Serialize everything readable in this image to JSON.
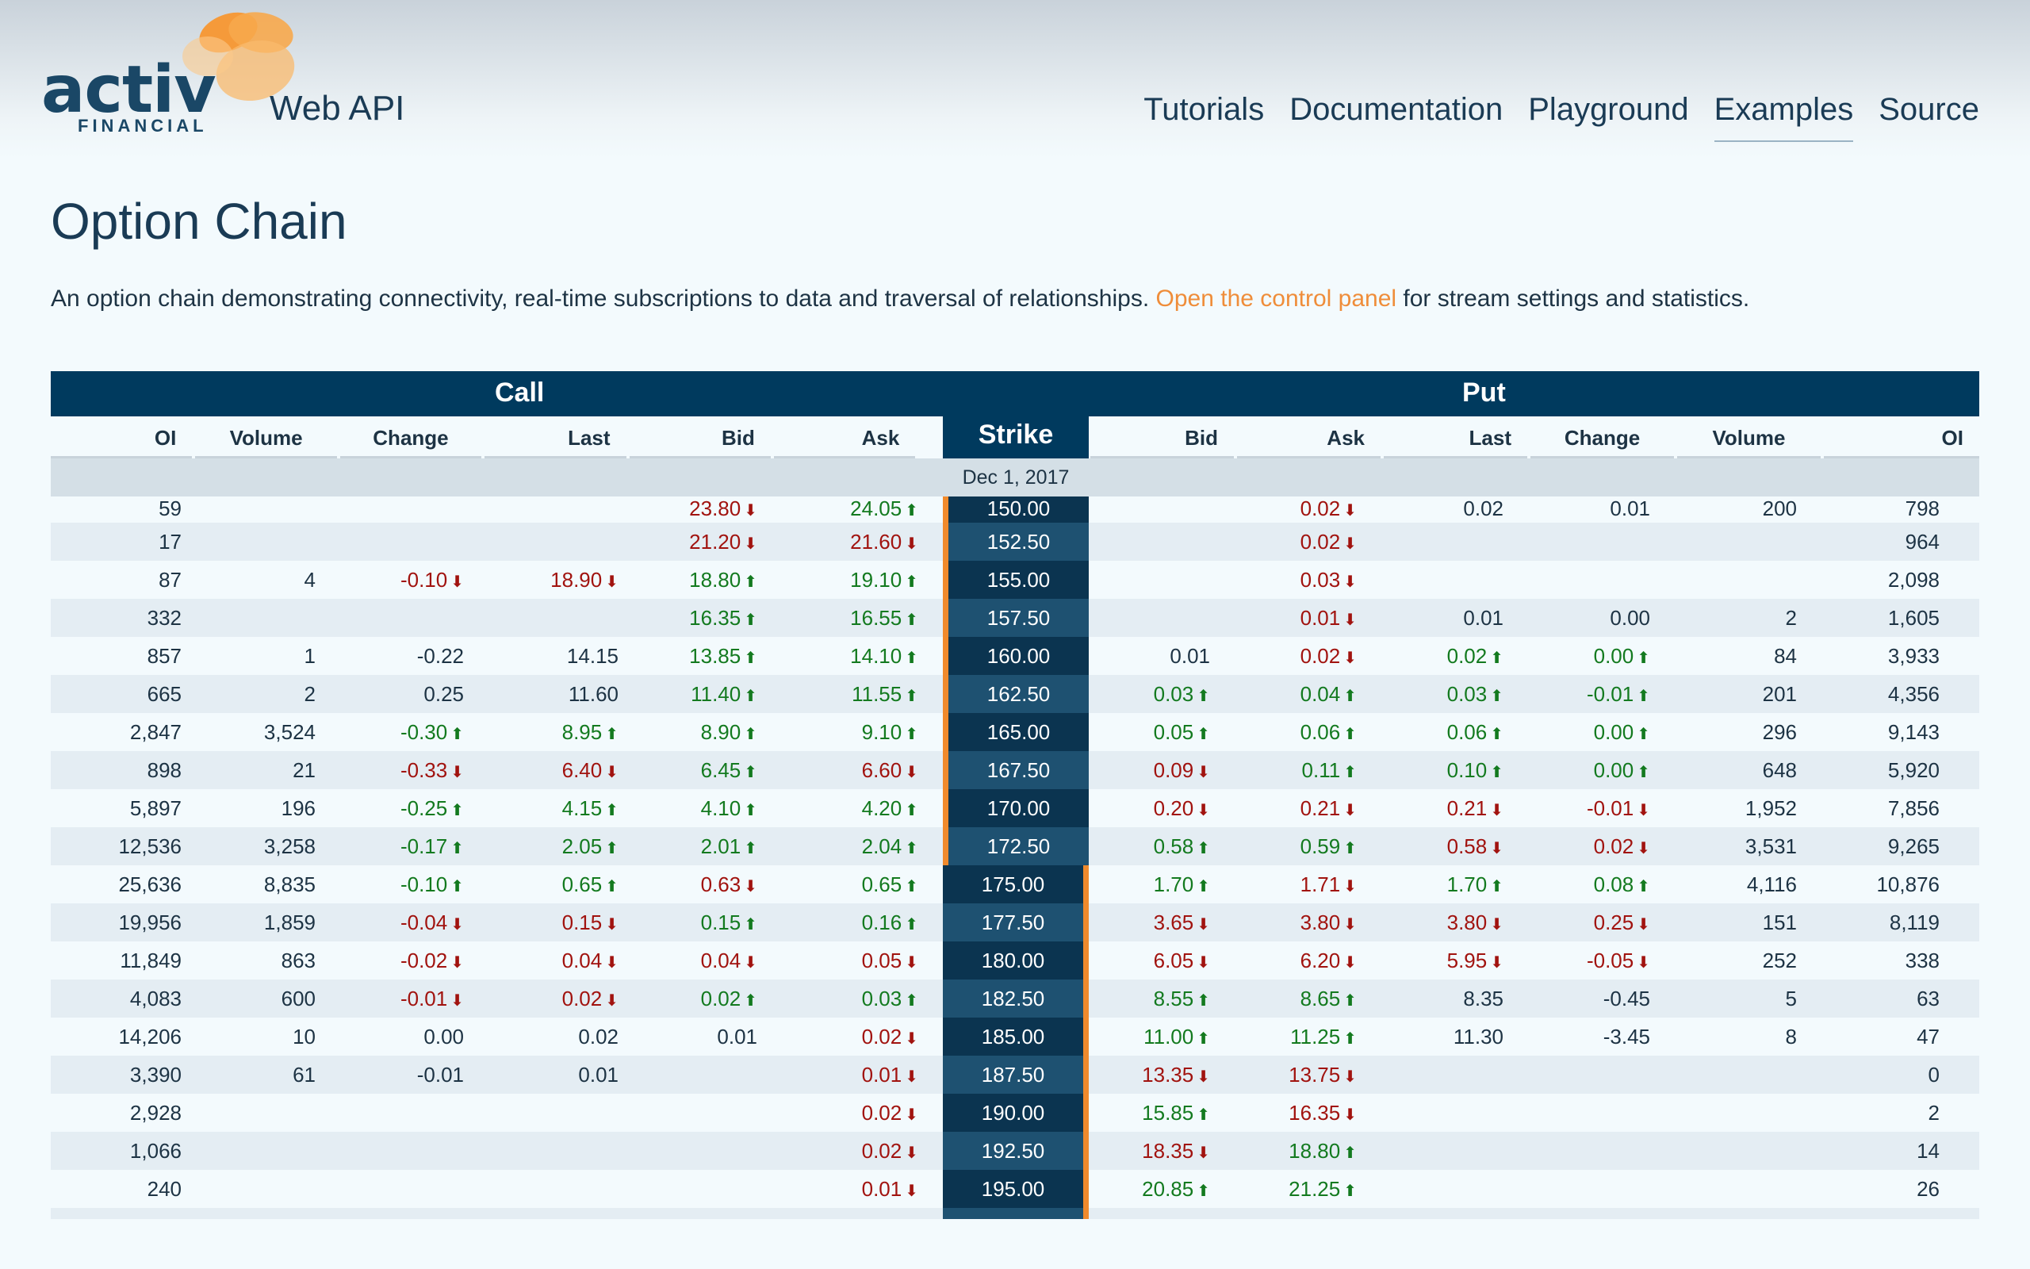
{
  "brand": {
    "logo_word": "activ",
    "logo_sub": "FINANCIAL",
    "product": "Web API"
  },
  "nav": [
    {
      "label": "Tutorials",
      "active": false
    },
    {
      "label": "Documentation",
      "active": false
    },
    {
      "label": "Playground",
      "active": false
    },
    {
      "label": "Examples",
      "active": true
    },
    {
      "label": "Source",
      "active": false
    }
  ],
  "page": {
    "title": "Option Chain",
    "intro_before": "An option chain demonstrating connectivity, real-time subscriptions to data and traversal of relationships. ",
    "intro_link": "Open the control panel",
    "intro_after": " for stream settings and statistics."
  },
  "chain": {
    "call_label": "Call",
    "put_label": "Put",
    "strike_label": "Strike",
    "call_columns": [
      "OI",
      "Volume",
      "Change",
      "Last",
      "Bid",
      "Ask"
    ],
    "put_columns": [
      "Bid",
      "Ask",
      "Last",
      "Change",
      "Volume",
      "OI"
    ],
    "expiry": "Dec 1, 2017",
    "colors": {
      "up": "#137a1f",
      "down": "#a1130f",
      "header": "#003a5e",
      "itm_marker": "#f08a2c",
      "link": "#ef8d3a"
    },
    "rows": [
      {
        "strike": "150.00",
        "itm": "call",
        "call": [
          [
            "59",
            ""
          ],
          [
            "",
            ""
          ],
          [
            "",
            ""
          ],
          [
            "",
            ""
          ],
          [
            "23.80",
            "d"
          ],
          [
            "24.05",
            "u"
          ]
        ],
        "put": [
          [
            "",
            ""
          ],
          [
            "0.02",
            "d"
          ],
          [
            "0.02",
            ""
          ],
          [
            "0.01",
            ""
          ],
          [
            "200",
            ""
          ],
          [
            "798",
            ""
          ]
        ]
      },
      {
        "strike": "152.50",
        "itm": "call",
        "call": [
          [
            "17",
            ""
          ],
          [
            "",
            ""
          ],
          [
            "",
            ""
          ],
          [
            "",
            ""
          ],
          [
            "21.20",
            "d"
          ],
          [
            "21.60",
            "d"
          ]
        ],
        "put": [
          [
            "",
            ""
          ],
          [
            "0.02",
            "d"
          ],
          [
            "",
            ""
          ],
          [
            "",
            ""
          ],
          [
            "",
            ""
          ],
          [
            "964",
            ""
          ]
        ]
      },
      {
        "strike": "155.00",
        "itm": "call",
        "call": [
          [
            "87",
            ""
          ],
          [
            "4",
            ""
          ],
          [
            "-0.10",
            "d"
          ],
          [
            "18.90",
            "d"
          ],
          [
            "18.80",
            "u"
          ],
          [
            "19.10",
            "u"
          ]
        ],
        "put": [
          [
            "",
            ""
          ],
          [
            "0.03",
            "d"
          ],
          [
            "",
            ""
          ],
          [
            "",
            ""
          ],
          [
            "",
            ""
          ],
          [
            "2,098",
            ""
          ]
        ]
      },
      {
        "strike": "157.50",
        "itm": "call",
        "call": [
          [
            "332",
            ""
          ],
          [
            "",
            ""
          ],
          [
            "",
            ""
          ],
          [
            "",
            ""
          ],
          [
            "16.35",
            "u"
          ],
          [
            "16.55",
            "u"
          ]
        ],
        "put": [
          [
            "",
            ""
          ],
          [
            "0.01",
            "d"
          ],
          [
            "0.01",
            ""
          ],
          [
            "0.00",
            ""
          ],
          [
            "2",
            ""
          ],
          [
            "1,605",
            ""
          ]
        ]
      },
      {
        "strike": "160.00",
        "itm": "call",
        "call": [
          [
            "857",
            ""
          ],
          [
            "1",
            ""
          ],
          [
            "-0.22",
            ""
          ],
          [
            "14.15",
            ""
          ],
          [
            "13.85",
            "u"
          ],
          [
            "14.10",
            "u"
          ]
        ],
        "put": [
          [
            "0.01",
            ""
          ],
          [
            "0.02",
            "d"
          ],
          [
            "0.02",
            "u"
          ],
          [
            "0.00",
            "u"
          ],
          [
            "84",
            ""
          ],
          [
            "3,933",
            ""
          ]
        ]
      },
      {
        "strike": "162.50",
        "itm": "call",
        "call": [
          [
            "665",
            ""
          ],
          [
            "2",
            ""
          ],
          [
            "0.25",
            ""
          ],
          [
            "11.60",
            ""
          ],
          [
            "11.40",
            "u"
          ],
          [
            "11.55",
            "u"
          ]
        ],
        "put": [
          [
            "0.03",
            "u"
          ],
          [
            "0.04",
            "u"
          ],
          [
            "0.03",
            "u"
          ],
          [
            "-0.01",
            "u"
          ],
          [
            "201",
            ""
          ],
          [
            "4,356",
            ""
          ]
        ]
      },
      {
        "strike": "165.00",
        "itm": "call",
        "call": [
          [
            "2,847",
            ""
          ],
          [
            "3,524",
            ""
          ],
          [
            "-0.30",
            "u"
          ],
          [
            "8.95",
            "u"
          ],
          [
            "8.90",
            "u"
          ],
          [
            "9.10",
            "u"
          ]
        ],
        "put": [
          [
            "0.05",
            "u"
          ],
          [
            "0.06",
            "u"
          ],
          [
            "0.06",
            "u"
          ],
          [
            "0.00",
            "u"
          ],
          [
            "296",
            ""
          ],
          [
            "9,143",
            ""
          ]
        ]
      },
      {
        "strike": "167.50",
        "itm": "call",
        "call": [
          [
            "898",
            ""
          ],
          [
            "21",
            ""
          ],
          [
            "-0.33",
            "d"
          ],
          [
            "6.40",
            "d"
          ],
          [
            "6.45",
            "u"
          ],
          [
            "6.60",
            "d"
          ]
        ],
        "put": [
          [
            "0.09",
            "d"
          ],
          [
            "0.11",
            "u"
          ],
          [
            "0.10",
            "u"
          ],
          [
            "0.00",
            "u"
          ],
          [
            "648",
            ""
          ],
          [
            "5,920",
            ""
          ]
        ]
      },
      {
        "strike": "170.00",
        "itm": "call",
        "call": [
          [
            "5,897",
            ""
          ],
          [
            "196",
            ""
          ],
          [
            "-0.25",
            "u"
          ],
          [
            "4.15",
            "u"
          ],
          [
            "4.10",
            "u"
          ],
          [
            "4.20",
            "u"
          ]
        ],
        "put": [
          [
            "0.20",
            "d"
          ],
          [
            "0.21",
            "d"
          ],
          [
            "0.21",
            "d"
          ],
          [
            "-0.01",
            "d"
          ],
          [
            "1,952",
            ""
          ],
          [
            "7,856",
            ""
          ]
        ]
      },
      {
        "strike": "172.50",
        "itm": "call",
        "call": [
          [
            "12,536",
            ""
          ],
          [
            "3,258",
            ""
          ],
          [
            "-0.17",
            "u"
          ],
          [
            "2.05",
            "u"
          ],
          [
            "2.01",
            "u"
          ],
          [
            "2.04",
            "u"
          ]
        ],
        "put": [
          [
            "0.58",
            "u"
          ],
          [
            "0.59",
            "u"
          ],
          [
            "0.58",
            "d"
          ],
          [
            "0.02",
            "d"
          ],
          [
            "3,531",
            ""
          ],
          [
            "9,265",
            ""
          ]
        ]
      },
      {
        "strike": "175.00",
        "itm": "put",
        "call": [
          [
            "25,636",
            ""
          ],
          [
            "8,835",
            ""
          ],
          [
            "-0.10",
            "u"
          ],
          [
            "0.65",
            "u"
          ],
          [
            "0.63",
            "d"
          ],
          [
            "0.65",
            "u"
          ]
        ],
        "put": [
          [
            "1.70",
            "u"
          ],
          [
            "1.71",
            "d"
          ],
          [
            "1.70",
            "u"
          ],
          [
            "0.08",
            "u"
          ],
          [
            "4,116",
            ""
          ],
          [
            "10,876",
            ""
          ]
        ]
      },
      {
        "strike": "177.50",
        "itm": "put",
        "call": [
          [
            "19,956",
            ""
          ],
          [
            "1,859",
            ""
          ],
          [
            "-0.04",
            "d"
          ],
          [
            "0.15",
            "d"
          ],
          [
            "0.15",
            "u"
          ],
          [
            "0.16",
            "u"
          ]
        ],
        "put": [
          [
            "3.65",
            "d"
          ],
          [
            "3.80",
            "d"
          ],
          [
            "3.80",
            "d"
          ],
          [
            "0.25",
            "d"
          ],
          [
            "151",
            ""
          ],
          [
            "8,119",
            ""
          ]
        ]
      },
      {
        "strike": "180.00",
        "itm": "put",
        "call": [
          [
            "11,849",
            ""
          ],
          [
            "863",
            ""
          ],
          [
            "-0.02",
            "d"
          ],
          [
            "0.04",
            "d"
          ],
          [
            "0.04",
            "d"
          ],
          [
            "0.05",
            "d"
          ]
        ],
        "put": [
          [
            "6.05",
            "d"
          ],
          [
            "6.20",
            "d"
          ],
          [
            "5.95",
            "d"
          ],
          [
            "-0.05",
            "d"
          ],
          [
            "252",
            ""
          ],
          [
            "338",
            ""
          ]
        ]
      },
      {
        "strike": "182.50",
        "itm": "put",
        "call": [
          [
            "4,083",
            ""
          ],
          [
            "600",
            ""
          ],
          [
            "-0.01",
            "d"
          ],
          [
            "0.02",
            "d"
          ],
          [
            "0.02",
            "u"
          ],
          [
            "0.03",
            "u"
          ]
        ],
        "put": [
          [
            "8.55",
            "u"
          ],
          [
            "8.65",
            "u"
          ],
          [
            "8.35",
            ""
          ],
          [
            "-0.45",
            ""
          ],
          [
            "5",
            ""
          ],
          [
            "63",
            ""
          ]
        ]
      },
      {
        "strike": "185.00",
        "itm": "put",
        "call": [
          [
            "14,206",
            ""
          ],
          [
            "10",
            ""
          ],
          [
            "0.00",
            ""
          ],
          [
            "0.02",
            ""
          ],
          [
            "0.01",
            ""
          ],
          [
            "0.02",
            "d"
          ]
        ],
        "put": [
          [
            "11.00",
            "u"
          ],
          [
            "11.25",
            "u"
          ],
          [
            "11.30",
            ""
          ],
          [
            "-3.45",
            ""
          ],
          [
            "8",
            ""
          ],
          [
            "47",
            ""
          ]
        ]
      },
      {
        "strike": "187.50",
        "itm": "put",
        "call": [
          [
            "3,390",
            ""
          ],
          [
            "61",
            ""
          ],
          [
            "-0.01",
            ""
          ],
          [
            "0.01",
            ""
          ],
          [
            "",
            ""
          ],
          [
            "0.01",
            "d"
          ]
        ],
        "put": [
          [
            "13.35",
            "d"
          ],
          [
            "13.75",
            "d"
          ],
          [
            "",
            ""
          ],
          [
            "",
            ""
          ],
          [
            "",
            ""
          ],
          [
            "0",
            ""
          ]
        ]
      },
      {
        "strike": "190.00",
        "itm": "put",
        "call": [
          [
            "2,928",
            ""
          ],
          [
            "",
            ""
          ],
          [
            "",
            ""
          ],
          [
            "",
            ""
          ],
          [
            "",
            ""
          ],
          [
            "0.02",
            "d"
          ]
        ],
        "put": [
          [
            "15.85",
            "u"
          ],
          [
            "16.35",
            "d"
          ],
          [
            "",
            ""
          ],
          [
            "",
            ""
          ],
          [
            "",
            ""
          ],
          [
            "2",
            ""
          ]
        ]
      },
      {
        "strike": "192.50",
        "itm": "put",
        "call": [
          [
            "1,066",
            ""
          ],
          [
            "",
            ""
          ],
          [
            "",
            ""
          ],
          [
            "",
            ""
          ],
          [
            "",
            ""
          ],
          [
            "0.02",
            "d"
          ]
        ],
        "put": [
          [
            "18.35",
            "d"
          ],
          [
            "18.80",
            "u"
          ],
          [
            "",
            ""
          ],
          [
            "",
            ""
          ],
          [
            "",
            ""
          ],
          [
            "14",
            ""
          ]
        ]
      },
      {
        "strike": "195.00",
        "itm": "put",
        "call": [
          [
            "240",
            ""
          ],
          [
            "",
            ""
          ],
          [
            "",
            ""
          ],
          [
            "",
            ""
          ],
          [
            "",
            ""
          ],
          [
            "0.01",
            "d"
          ]
        ],
        "put": [
          [
            "20.85",
            "u"
          ],
          [
            "21.25",
            "u"
          ],
          [
            "",
            ""
          ],
          [
            "",
            ""
          ],
          [
            "",
            ""
          ],
          [
            "26",
            ""
          ]
        ]
      }
    ]
  }
}
